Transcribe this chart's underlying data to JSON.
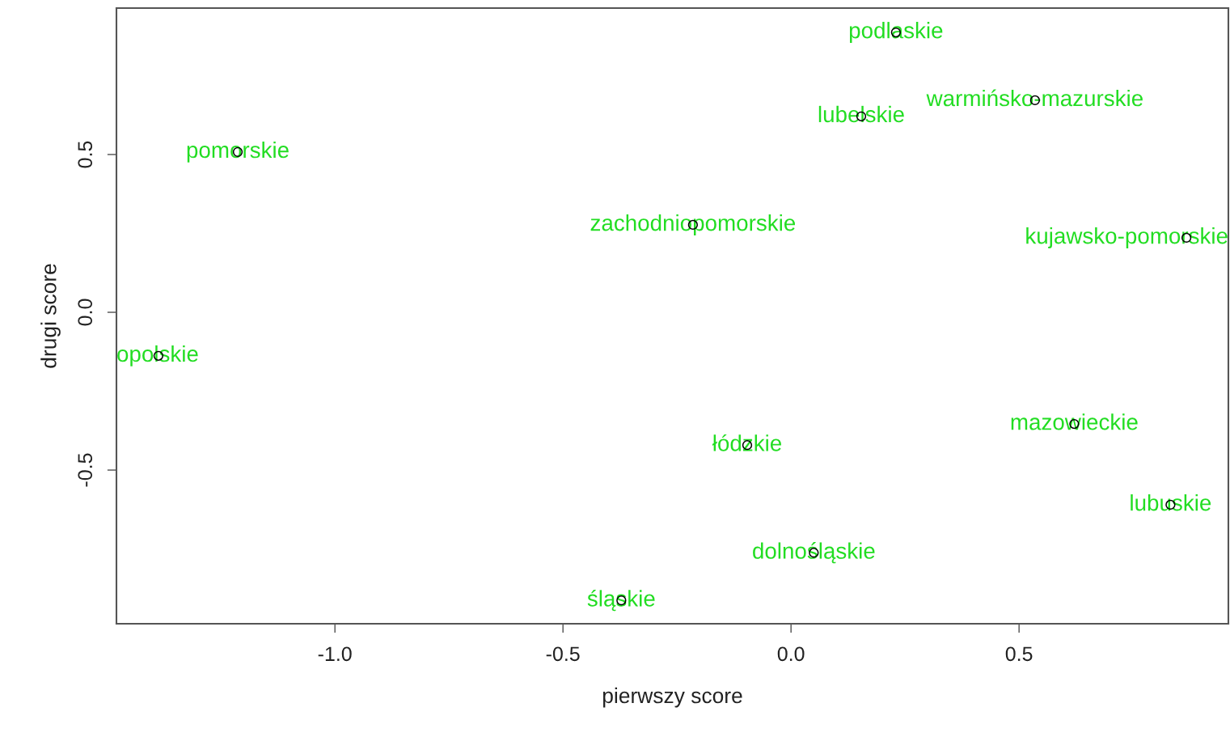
{
  "chart_data": {
    "type": "scatter",
    "xlabel": "pierwszy score",
    "ylabel": "drugi score",
    "x": [
      0.23,
      0.535,
      0.154,
      -1.213,
      -0.215,
      0.867,
      -1.387,
      0.621,
      -0.096,
      0.832,
      0.05,
      -0.372
    ],
    "series": [
      {
        "color": "#000000",
        "values": [
          0.887,
          0.672,
          0.621,
          0.508,
          0.277,
          0.236,
          -0.138,
          -0.354,
          -0.421,
          -0.61,
          -0.762,
          -0.913
        ]
      }
    ],
    "marker": "circle",
    "grid": false,
    "legend": false,
    "xlim": [
      -1.479,
      0.959
    ],
    "ylim": [
      -0.987,
      0.964
    ],
    "xticks": [
      {
        "value": -1.0,
        "label": "-1.0"
      },
      {
        "value": -0.5,
        "label": "-0.5"
      },
      {
        "value": 0.0,
        "label": "0.0"
      },
      {
        "value": 0.5,
        "label": "0.5"
      }
    ],
    "yticks": [
      {
        "value": -0.5,
        "label": "-0.5"
      },
      {
        "value": 0.0,
        "label": "0.0"
      },
      {
        "value": 0.5,
        "label": "0.5"
      }
    ],
    "annotations": [
      {
        "text": "podlaskie",
        "x": 0.23,
        "y": 0.887
      },
      {
        "text": "warmińsko-mazurskie",
        "x": 0.535,
        "y": 0.672
      },
      {
        "text": "lubelskie",
        "x": 0.154,
        "y": 0.621
      },
      {
        "text": "pomorskie",
        "x": -1.213,
        "y": 0.508
      },
      {
        "text": "zachodniopomorskie",
        "x": -0.215,
        "y": 0.277
      },
      {
        "text": "kujawsko-pomorskie",
        "x": 0.867,
        "y": 0.236
      },
      {
        "text": "opolskie",
        "x": -1.387,
        "y": -0.138
      },
      {
        "text": "mazowieckie",
        "x": 0.621,
        "y": -0.354
      },
      {
        "text": "łódzkie",
        "x": -0.096,
        "y": -0.421
      },
      {
        "text": "lubuskie",
        "x": 0.832,
        "y": -0.61
      },
      {
        "text": "dolnośląskie",
        "x": 0.05,
        "y": -0.762
      },
      {
        "text": "śląskie",
        "x": -0.372,
        "y": -0.913
      }
    ]
  }
}
